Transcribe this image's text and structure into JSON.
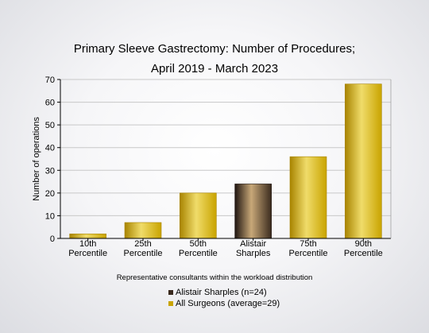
{
  "chart_data": {
    "type": "bar",
    "title": [
      "Primary Sleeve Gastrectomy: Number of Procedures;",
      "April 2019 - March 2023"
    ],
    "ylabel": "Number of operations",
    "xlabel": "Representative consultants within the workload distribution",
    "ylim": [
      0,
      70
    ],
    "yticks": [
      0,
      10,
      20,
      30,
      40,
      50,
      60,
      70
    ],
    "grid": true,
    "categories": [
      [
        "10th",
        "Percentile"
      ],
      [
        "25th",
        "Percentile"
      ],
      [
        "50th",
        "Percentile"
      ],
      [
        "Alistair",
        "Sharples"
      ],
      [
        "75th",
        "Percentile"
      ],
      [
        "90th",
        "Percentile"
      ]
    ],
    "values": [
      2,
      7,
      20,
      24,
      36,
      68
    ],
    "highlight_index": 3,
    "colors": {
      "bar": "#c9a400",
      "bar_light": "#f0dc6a",
      "bar_dark": "#a88400",
      "highlight": "#3a2a1e",
      "highlight_light": "#c8a878",
      "highlight_dark": "#1e1410",
      "grid": "#c8c8c8"
    },
    "legend": {
      "position": "bottom",
      "entries": [
        {
          "label": "Alistair Sharples (n=24)",
          "color": "#3a2a1e"
        },
        {
          "label": "All Surgeons (average=29)",
          "color": "#c9a400"
        }
      ]
    }
  }
}
